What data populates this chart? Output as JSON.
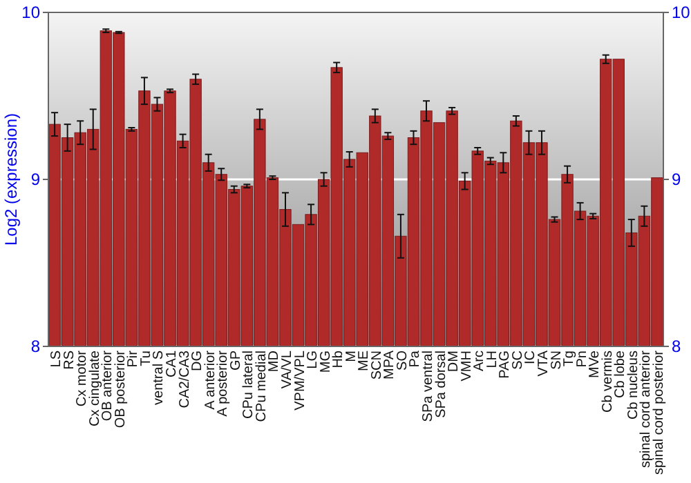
{
  "chart_data": {
    "type": "bar",
    "ylabel": "Log2 (expression)",
    "categories": [
      "LS",
      "RS",
      "Cx motor",
      "Cx cingulate",
      "OB anterior",
      "OB posterior",
      "Pir",
      "Tu",
      "ventral S",
      "CA1",
      "CA2/CA3",
      "DG",
      "A anterior",
      "A posterior",
      "GP",
      "CPu lateral",
      "CPu medial",
      "MD",
      "VA/VL",
      "VPM/VPL",
      "LG",
      "MG",
      "Hb",
      "M",
      "ME",
      "SCN",
      "MPA",
      "SO",
      "Pa",
      "SPa ventral",
      "SPa dorsal",
      "DM",
      "VMH",
      "Arc",
      "LH",
      "PAG",
      "SC",
      "IC",
      "VTA",
      "SN",
      "Tg",
      "Pn",
      "MVe",
      "Cb vermis",
      "Cb lobe",
      "Cb nucleus",
      "spinal cord anterior",
      "spinal cord posterior"
    ],
    "values": [
      9.33,
      9.25,
      9.28,
      9.3,
      9.89,
      9.88,
      9.3,
      9.53,
      9.45,
      9.53,
      9.23,
      9.6,
      9.1,
      9.03,
      8.94,
      8.96,
      9.36,
      9.01,
      8.82,
      8.73,
      8.79,
      9.0,
      9.67,
      9.12,
      9.16,
      9.38,
      9.26,
      8.66,
      9.25,
      9.41,
      9.34,
      9.41,
      8.99,
      9.17,
      9.11,
      9.1,
      9.35,
      9.22,
      9.22,
      8.76,
      9.03,
      8.81,
      8.78,
      9.72,
      9.72,
      8.68,
      8.78,
      9.01
    ],
    "errors": [
      0.07,
      0.08,
      0.07,
      0.12,
      0.01,
      0.005,
      0.01,
      0.08,
      0.04,
      0.01,
      0.04,
      0.03,
      0.05,
      0.035,
      0.02,
      0.01,
      0.06,
      0.01,
      0.1,
      null,
      0.06,
      0.04,
      0.03,
      0.045,
      null,
      0.04,
      0.02,
      0.13,
      0.04,
      0.06,
      null,
      0.02,
      0.05,
      0.02,
      0.02,
      0.06,
      0.03,
      0.07,
      0.07,
      0.015,
      0.05,
      0.05,
      0.015,
      0.025,
      null,
      0.08,
      0.06,
      null
    ],
    "color": "#b02a2a",
    "ylim": [
      8,
      10
    ],
    "yticks": [
      8,
      9,
      10
    ],
    "y2lim": [
      8,
      10
    ],
    "y2ticks": [
      8,
      9,
      10
    ],
    "grid": "y"
  }
}
